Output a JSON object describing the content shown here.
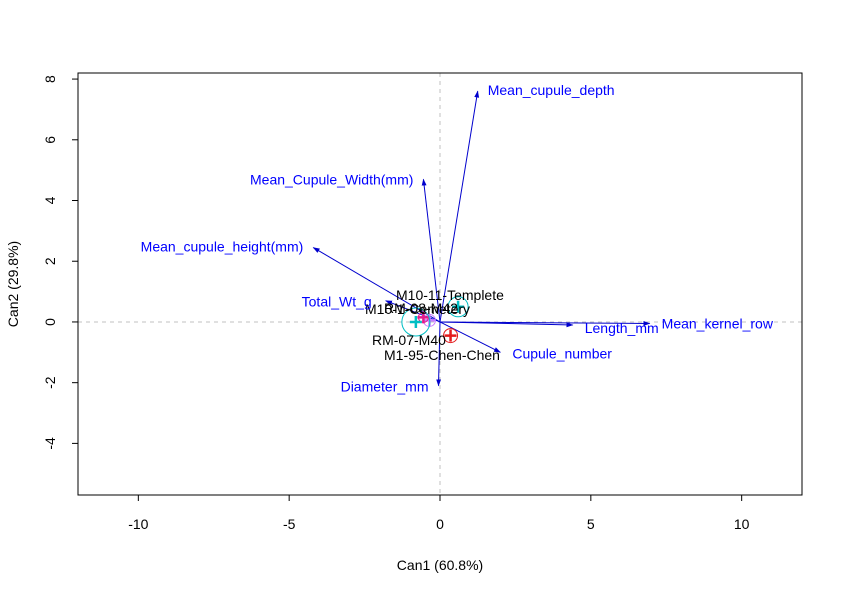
{
  "chart_data": {
    "type": "scatter",
    "title": "",
    "xlabel": "Can1 (60.8%)",
    "ylabel": "Can2 (29.8%)",
    "xlim": [
      -12,
      12
    ],
    "ylim": [
      -5.7,
      8.2
    ],
    "x_ticks": [
      -10,
      -5,
      0,
      5,
      10
    ],
    "y_ticks": [
      -4,
      -2,
      0,
      2,
      4,
      6,
      8
    ],
    "grid": false,
    "reference_lines": "dashed lines at x=0 and y=0",
    "colors": {
      "vectors": "#0000cd",
      "vector_labels": "#0000ff",
      "reference": "#c0c0c0",
      "group_labels": "#000000"
    },
    "vectors": [
      {
        "label": "Mean_cupule_depth",
        "x": 1.25,
        "y": 7.6
      },
      {
        "label": "Mean_Cupule_Width(mm)",
        "x": -0.55,
        "y": 4.7
      },
      {
        "label": "Mean_cupule_height(mm)",
        "x": -4.2,
        "y": 2.45
      },
      {
        "label": "Total_Wt_g",
        "x": -1.8,
        "y": 0.7
      },
      {
        "label": "Length_mm",
        "x": 4.4,
        "y": -0.1
      },
      {
        "label": "Mean_kernel_row",
        "x": 6.95,
        "y": -0.05
      },
      {
        "label": "Cupule_number",
        "x": 2.0,
        "y": -1.0
      },
      {
        "label": "Diameter_mm",
        "x": -0.05,
        "y": -2.1
      }
    ],
    "groups": [
      {
        "label": "M10-11-Templete",
        "x": 0.6,
        "y": 0.5,
        "color": "#00bfc4"
      },
      {
        "label": "M10-1-Cemetery",
        "x": -0.35,
        "y": 0.05,
        "color": "#c77cff"
      },
      {
        "label": "RM-08-M42",
        "x": -0.55,
        "y": 0.15,
        "color": "#e41a8a"
      },
      {
        "label": "RM-07-M40",
        "x": 0.35,
        "y": -0.45,
        "color": "#e41a1c"
      },
      {
        "label": "M1-95-Chen-Chen",
        "x": -0.8,
        "y": 0.0,
        "color": "#00bfc4"
      }
    ]
  }
}
